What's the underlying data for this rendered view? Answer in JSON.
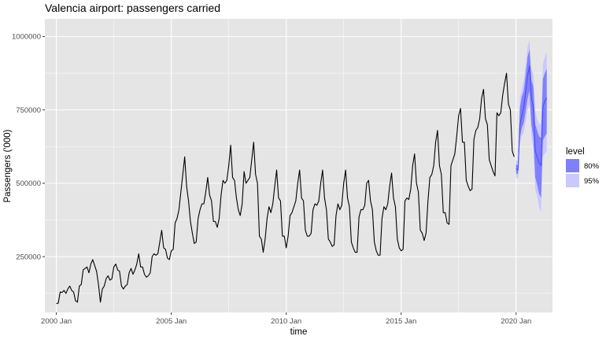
{
  "chart_data": {
    "type": "line",
    "title": "Valencia airport: passengers carried",
    "xlabel": "time",
    "ylabel": "Passengers ('000)",
    "xlim": [
      "1999-07",
      "2021-08"
    ],
    "ylim": [
      60000,
      1060000
    ],
    "x_ticks": [
      {
        "date": "2000-01",
        "label": "2000 Jan"
      },
      {
        "date": "2005-01",
        "label": "2005 Jan"
      },
      {
        "date": "2010-01",
        "label": "2010 Jan"
      },
      {
        "date": "2015-01",
        "label": "2015 Jan"
      },
      {
        "date": "2020-01",
        "label": "2020 Jan"
      }
    ],
    "y_ticks": [
      {
        "value": 250000,
        "label": "250000"
      },
      {
        "value": 500000,
        "label": "500000"
      },
      {
        "value": 750000,
        "label": "750000"
      },
      {
        "value": 1000000,
        "label": "1000000"
      }
    ],
    "grid": true,
    "legend": {
      "title": "level",
      "position": "right",
      "entries": [
        {
          "label": "80%",
          "color": "#8080ff"
        },
        {
          "label": "95%",
          "color": "#c9c9ff"
        }
      ]
    },
    "colors": {
      "panel": "#e5e5e5",
      "grid": "#ffffff",
      "line": "#000000",
      "forecast_line": "#4c4cff",
      "band_80": "#8080ff",
      "band_95": "#c9c9ff"
    },
    "series": [
      {
        "start": "2000-01",
        "values": [
          90000,
          92000,
          130000,
          128000,
          135000,
          125000,
          140000,
          150000,
          135000,
          130000,
          100000,
          95000,
          150000,
          155000,
          205000,
          210000,
          215000,
          195000,
          225000,
          240000,
          220000,
          200000,
          155000,
          95000,
          140000,
          150000,
          175000,
          185000,
          170000,
          175000,
          215000,
          225000,
          205000,
          200000,
          150000,
          140000,
          150000,
          155000,
          195000,
          210000,
          190000,
          205000,
          225000,
          260000,
          215000,
          215000,
          190000,
          180000,
          185000,
          195000,
          250000,
          260000,
          255000,
          260000,
          300000,
          340000,
          280000,
          275000,
          245000,
          240000,
          270000,
          275000,
          365000,
          380000,
          410000,
          470000,
          530000,
          590000,
          490000,
          440000,
          370000,
          330000,
          295000,
          300000,
          380000,
          410000,
          430000,
          430000,
          470000,
          520000,
          460000,
          440000,
          370000,
          370000,
          350000,
          380000,
          460000,
          510000,
          500000,
          510000,
          560000,
          630000,
          520000,
          510000,
          450000,
          410000,
          390000,
          430000,
          540000,
          500000,
          510000,
          520000,
          580000,
          640000,
          530000,
          500000,
          320000,
          310000,
          265000,
          310000,
          380000,
          420000,
          400000,
          430000,
          490000,
          545000,
          450000,
          440000,
          320000,
          320000,
          280000,
          320000,
          390000,
          400000,
          420000,
          440000,
          500000,
          545000,
          450000,
          440000,
          340000,
          320000,
          320000,
          330000,
          410000,
          430000,
          425000,
          440000,
          500000,
          545000,
          450000,
          410000,
          310000,
          300000,
          285000,
          290000,
          390000,
          430000,
          410000,
          425000,
          500000,
          545000,
          450000,
          420000,
          300000,
          280000,
          265000,
          265000,
          385000,
          410000,
          410000,
          425000,
          500000,
          510000,
          440000,
          410000,
          300000,
          270000,
          255000,
          255000,
          380000,
          420000,
          410000,
          430000,
          490000,
          535000,
          450000,
          420000,
          310000,
          280000,
          270000,
          275000,
          440000,
          450000,
          445000,
          480000,
          560000,
          600000,
          500000,
          470000,
          340000,
          330000,
          305000,
          330000,
          440000,
          520000,
          530000,
          560000,
          640000,
          680000,
          560000,
          530000,
          400000,
          400000,
          365000,
          360000,
          560000,
          580000,
          600000,
          660000,
          730000,
          755000,
          640000,
          640000,
          510000,
          490000,
          475000,
          480000,
          650000,
          680000,
          690000,
          720000,
          790000,
          820000,
          720000,
          700000,
          580000,
          560000,
          540000,
          525000,
          740000,
          730000,
          740000,
          800000,
          840000,
          875000,
          770000,
          750000,
          610000,
          590000
        ]
      }
    ],
    "forecast": {
      "start": "2020-01",
      "mean": [
        550000,
        545000,
        700000,
        730000,
        760000,
        810000,
        865000,
        900000,
        790000,
        760000,
        610000,
        590000,
        570000,
        560000,
        760000,
        780000,
        790000
      ],
      "lo80": [
        535000,
        530000,
        655000,
        690000,
        705000,
        745000,
        790000,
        815000,
        700000,
        660000,
        520000,
        495000,
        465000,
        450000,
        645000,
        660000,
        670000
      ],
      "hi80": [
        565000,
        560000,
        760000,
        795000,
        815000,
        870000,
        930000,
        955000,
        850000,
        830000,
        700000,
        680000,
        660000,
        655000,
        855000,
        875000,
        890000
      ],
      "lo95": [
        520000,
        515000,
        635000,
        660000,
        675000,
        710000,
        750000,
        770000,
        660000,
        620000,
        480000,
        455000,
        420000,
        400000,
        590000,
        600000,
        610000
      ],
      "hi95": [
        580000,
        575000,
        790000,
        820000,
        850000,
        905000,
        965000,
        990000,
        890000,
        870000,
        745000,
        720000,
        700000,
        705000,
        905000,
        930000,
        945000
      ]
    }
  }
}
